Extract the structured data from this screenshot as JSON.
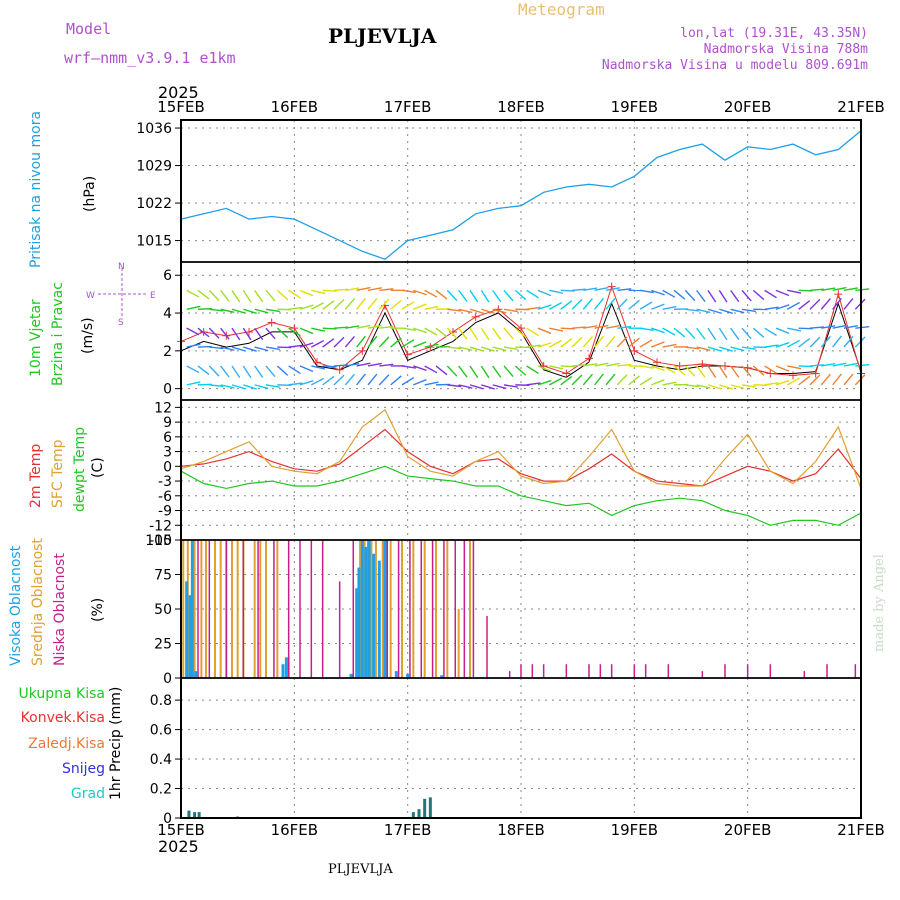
{
  "header": {
    "model_label": "Model",
    "model_name": "wrf–nmm_v3.9.1  e1km",
    "title": "PLJEVLJA",
    "meteogram": "Meteogram",
    "lonlat": "lon,lat (19.31E, 43.35N)",
    "elevation": "Nadmorska Visina 788m",
    "model_elevation": "Nadmorska Visina u modelu 809.691m",
    "year_top": "2025",
    "year_bottom": "2025",
    "footer": "PLJEVLJA",
    "credit": "made by Angel"
  },
  "colors": {
    "pressure": "#1ea0e6",
    "wind_mag": "#000000",
    "temp2m": "#e83030",
    "sfc": "#e0a030",
    "dewpt": "#20c820",
    "high_cloud": "#1ea0e6",
    "mid_cloud": "#e0a030",
    "low_cloud": "#c81e8c",
    "precip": "#1e7878",
    "grid": "#888888"
  },
  "chart_data": [
    {
      "type": "line",
      "ylabel_1": "Pritisak na nivou mora",
      "ylabel_2": "(hPa)",
      "x_ticks": [
        "15FEB",
        "16FEB",
        "17FEB",
        "18FEB",
        "19FEB",
        "20FEB",
        "21FEB"
      ],
      "yticks": [
        "1015",
        "1022",
        "1029",
        "1036"
      ],
      "ylim": [
        1011,
        1037.5
      ],
      "x": [
        0,
        0.2,
        0.4,
        0.6,
        0.8,
        1,
        1.2,
        1.4,
        1.6,
        1.8,
        2,
        2.2,
        2.4,
        2.6,
        2.8,
        3,
        3.2,
        3.4,
        3.6,
        3.8,
        4,
        4.2,
        4.4,
        4.6,
        4.8,
        5,
        5.2,
        5.4,
        5.6,
        5.8,
        6
      ],
      "series": [
        {
          "values": [
            1019,
            1020,
            1021,
            1019,
            1019.5,
            1019,
            1017,
            1015,
            1013,
            1011.5,
            1015,
            1016,
            1017,
            1020,
            1021,
            1021.5,
            1024,
            1025,
            1025.5,
            1025,
            1027,
            1030.5,
            1032,
            1033,
            1030,
            1032.5,
            1032,
            1033,
            1031,
            1032,
            1035.5
          ]
        }
      ]
    },
    {
      "type": "line",
      "ylabel_1": "10m Vjetar",
      "ylabel_2": "Brzina i Pravac",
      "ylabel_3": "(m/s)",
      "compass": [
        "N",
        "E",
        "S",
        "W"
      ],
      "yticks": [
        "0",
        "2",
        "4",
        "6"
      ],
      "ylim": [
        -0.6,
        6.7
      ],
      "x": [
        0,
        0.2,
        0.4,
        0.6,
        0.8,
        1,
        1.2,
        1.4,
        1.6,
        1.8,
        2,
        2.2,
        2.4,
        2.6,
        2.8,
        3,
        3.2,
        3.4,
        3.6,
        3.8,
        4,
        4.2,
        4.4,
        4.6,
        4.8,
        5,
        5.2,
        5.4,
        5.6,
        5.8,
        6
      ],
      "series": [
        {
          "values": [
            2,
            2.5,
            2.2,
            2.4,
            3,
            3,
            1.2,
            1,
            1.5,
            4,
            1.5,
            2,
            2.5,
            3.5,
            4,
            3,
            1,
            0.6,
            1.4,
            4.5,
            1.5,
            1.2,
            1,
            1.2,
            1.2,
            1.1,
            0.8,
            0.8,
            0.9,
            4.5,
            0.9
          ]
        },
        {
          "values": [
            2.5,
            3,
            2.8,
            3,
            3.5,
            3.2,
            1.4,
            1,
            2,
            4.4,
            1.8,
            2.2,
            3,
            3.8,
            4.2,
            3.2,
            1.2,
            0.8,
            1.6,
            5.4,
            2,
            1.4,
            1.2,
            1.3,
            1.2,
            1.1,
            0.8,
            0.7,
            0.8,
            5,
            0.8
          ]
        }
      ]
    },
    {
      "type": "line",
      "ylabel_1": "2m Temp",
      "ylabel_2": "SFC Temp",
      "ylabel_3": "dewpt Temp",
      "ylabel_4": "(C)",
      "yticks": [
        "-15",
        "-12",
        "-9",
        "-6",
        "-3",
        "0",
        "3",
        "6",
        "9",
        "12"
      ],
      "ylim": [
        -15,
        13.5
      ],
      "x": [
        0,
        0.2,
        0.4,
        0.6,
        0.8,
        1,
        1.2,
        1.4,
        1.6,
        1.8,
        2,
        2.2,
        2.4,
        2.6,
        2.8,
        3,
        3.2,
        3.4,
        3.6,
        3.8,
        4,
        4.2,
        4.4,
        4.6,
        4.8,
        5,
        5.2,
        5.4,
        5.6,
        5.8,
        6
      ],
      "series": [
        {
          "name": "2m Temp",
          "values": [
            0,
            0.5,
            1.5,
            3,
            1,
            -0.5,
            -1,
            0.5,
            4,
            7.5,
            3,
            0,
            -1.5,
            1,
            1.5,
            -1.5,
            -3,
            -3,
            -0.5,
            2.5,
            -1,
            -3,
            -3.5,
            -4,
            -2,
            0,
            -1,
            -3,
            -1.5,
            3.5,
            -2.5
          ]
        },
        {
          "name": "SFC Temp",
          "values": [
            -0.5,
            1,
            3,
            5,
            0,
            -1,
            -1.5,
            1,
            8,
            11.5,
            2,
            -1,
            -2,
            1,
            3,
            -2,
            -3.5,
            -3,
            2,
            7.5,
            -1,
            -3.5,
            -4,
            -4,
            1.5,
            6.5,
            -1,
            -3.5,
            1,
            8,
            -4.5
          ]
        },
        {
          "name": "dewpt Temp",
          "values": [
            -1,
            -3.5,
            -4.5,
            -3.5,
            -3,
            -4,
            -4,
            -3,
            -1.5,
            0,
            -2,
            -2.5,
            -3,
            -4,
            -4,
            -6,
            -7,
            -8,
            -7.5,
            -10,
            -8,
            -7,
            -6.5,
            -7,
            -9,
            -10,
            -12,
            -11,
            -11,
            -12,
            -9.5
          ]
        }
      ]
    },
    {
      "type": "bar",
      "ylabel_1": "Visoka Oblacnost",
      "ylabel_2": "Srednja Oblacnost",
      "ylabel_3": "Niska Oblacnost",
      "ylabel_4": "(%)",
      "yticks": [
        "0",
        "25",
        "50",
        "75",
        "100"
      ],
      "ylim": [
        0,
        100
      ],
      "high": {
        "x": [
          0.05,
          0.08,
          0.1,
          0.13,
          0.9,
          0.93,
          1.5,
          1.55,
          1.57,
          1.6,
          1.63,
          1.66,
          1.7,
          1.75,
          1.8,
          1.9,
          2.0,
          2.3
        ],
        "values": [
          70,
          60,
          100,
          5,
          10,
          15,
          3,
          65,
          80,
          100,
          95,
          100,
          90,
          85,
          100,
          5,
          3,
          2
        ]
      },
      "mid": {
        "x": [
          0.02,
          0.06,
          0.12,
          0.18,
          0.22,
          0.3,
          0.35,
          0.4,
          0.45,
          0.5,
          0.55,
          0.65,
          0.7,
          0.75,
          0.85,
          0.95,
          1.58,
          1.62,
          1.68,
          1.72,
          1.78,
          1.85,
          1.95,
          2.05,
          2.15,
          2.25,
          2.35,
          2.45,
          2.55
        ],
        "values": [
          100,
          100,
          100,
          100,
          100,
          100,
          100,
          100,
          100,
          100,
          100,
          100,
          100,
          100,
          100,
          15,
          100,
          100,
          100,
          100,
          100,
          100,
          100,
          100,
          100,
          100,
          100,
          50,
          100
        ]
      },
      "low": {
        "x": [
          0.15,
          0.25,
          0.4,
          0.55,
          0.68,
          0.82,
          0.95,
          1.05,
          1.15,
          1.25,
          1.4,
          1.52,
          1.65,
          1.82,
          1.92,
          2.02,
          2.12,
          2.22,
          2.32,
          2.42,
          2.5,
          2.58,
          2.7,
          2.9,
          3.0,
          3.1,
          3.2,
          3.4,
          3.6,
          3.7,
          3.8,
          4.0,
          4.1,
          4.3,
          4.6,
          4.8,
          5.0,
          5.2,
          5.5,
          5.7,
          5.95
        ],
        "values": [
          100,
          100,
          100,
          100,
          100,
          100,
          100,
          100,
          100,
          100,
          70,
          100,
          100,
          100,
          100,
          100,
          100,
          100,
          100,
          100,
          100,
          100,
          45,
          5,
          10,
          10,
          10,
          10,
          10,
          10,
          10,
          10,
          10,
          10,
          5,
          10,
          10,
          10,
          5,
          10,
          10
        ]
      }
    },
    {
      "type": "bar",
      "labels": [
        "Ukupna Kisa",
        "Konvek.Kisa",
        "Zaledj.Kisa",
        "Snijeg",
        "Grad"
      ],
      "ylabel": "1hr Precip (mm)",
      "yticks": [
        "0",
        "0.2",
        "0.4",
        "0.6",
        "0.8"
      ],
      "ylim": [
        0,
        0.95
      ],
      "x": [
        0.07,
        0.12,
        0.16,
        0.5,
        2.05,
        2.1,
        2.15,
        2.2
      ],
      "values": [
        0.05,
        0.04,
        0.04,
        0.01,
        0.04,
        0.06,
        0.13,
        0.14
      ]
    }
  ]
}
